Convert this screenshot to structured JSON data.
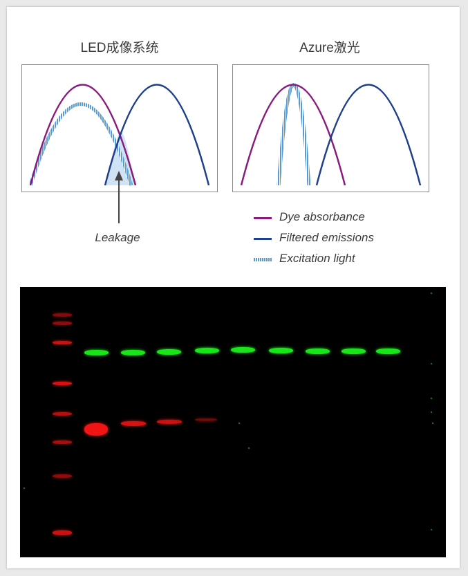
{
  "panels": {
    "led": {
      "title": "LED成像系统"
    },
    "azure": {
      "title": "Azure激光"
    }
  },
  "annotation": {
    "leakage": "Leakage"
  },
  "legend": [
    {
      "label": "Dye absorbance",
      "color": "#8a1a7e",
      "style": "solid"
    },
    {
      "label": "Filtered emissions",
      "color": "#1d3f8c",
      "style": "solid"
    },
    {
      "label": "Excitation light",
      "color": "#5b9bd5",
      "style": "dashed"
    }
  ],
  "colors": {
    "absorbance": "#8a1a7e",
    "emission": "#1d3f8c",
    "excitation": "#5b9bd5",
    "leakage_fill": "#cfe3f5",
    "band_green": "#19e619",
    "band_red": "#f01414"
  },
  "western_blot": {
    "ladder_bands": 8,
    "sample_lanes": 9,
    "green_band_intensity": [
      1,
      1,
      1,
      1,
      1,
      1,
      1,
      1,
      1
    ],
    "red_band_intensity": [
      1.0,
      0.8,
      0.7,
      0.3,
      0,
      0,
      0,
      0,
      0
    ]
  }
}
